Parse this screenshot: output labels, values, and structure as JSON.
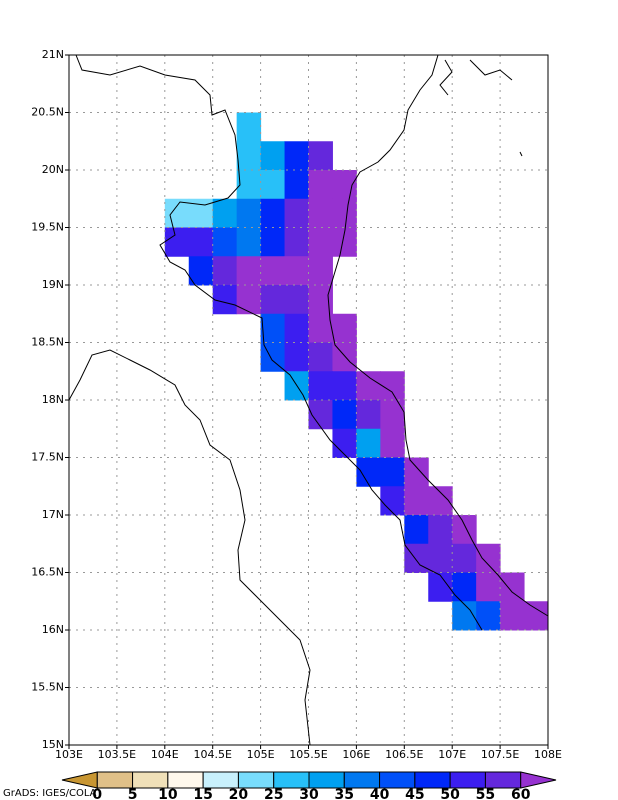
{
  "map": {
    "xlim": [
      103,
      108
    ],
    "ylim": [
      15,
      21
    ],
    "xticks": [
      {
        "value": 103,
        "label": "103E"
      },
      {
        "value": 103.5,
        "label": "103.5E"
      },
      {
        "value": 104,
        "label": "104E"
      },
      {
        "value": 104.5,
        "label": "104.5E"
      },
      {
        "value": 105,
        "label": "105E"
      },
      {
        "value": 105.5,
        "label": "105.5E"
      },
      {
        "value": 106,
        "label": "106E"
      },
      {
        "value": 106.5,
        "label": "106.5E"
      },
      {
        "value": 107,
        "label": "107E"
      },
      {
        "value": 107.5,
        "label": "107.5E"
      },
      {
        "value": 108,
        "label": "108E"
      }
    ],
    "yticks": [
      {
        "value": 15,
        "label": "15N"
      },
      {
        "value": 15.5,
        "label": "15.5N"
      },
      {
        "value": 16,
        "label": "16N"
      },
      {
        "value": 16.5,
        "label": "16.5N"
      },
      {
        "value": 17,
        "label": "17N"
      },
      {
        "value": 17.5,
        "label": "17.5N"
      },
      {
        "value": 18,
        "label": "18N"
      },
      {
        "value": 18.5,
        "label": "18.5N"
      },
      {
        "value": 19,
        "label": "19N"
      },
      {
        "value": 19.5,
        "label": "19.5N"
      },
      {
        "value": 20,
        "label": "20N"
      },
      {
        "value": 20.5,
        "label": "20.5N"
      },
      {
        "value": 21,
        "label": "21N"
      }
    ],
    "grid": true,
    "cell_size": 0.25,
    "cells": [
      {
        "lat": 20.375,
        "lon": [
          104.875
        ],
        "values": [
          27
        ]
      },
      {
        "lat": 20.125,
        "lon": [
          104.875,
          105.125,
          105.375,
          105.625
        ],
        "values": [
          27,
          32,
          47,
          57
        ]
      },
      {
        "lat": 19.875,
        "lon": [
          104.875,
          105.125,
          105.375,
          105.625,
          105.875
        ],
        "values": [
          27,
          27,
          47,
          62,
          62
        ]
      },
      {
        "lat": 19.625,
        "lon": [
          104.125,
          104.375,
          104.625,
          104.875,
          105.125,
          105.375,
          105.625,
          105.875
        ],
        "values": [
          22,
          22,
          32,
          37,
          47,
          57,
          62,
          62
        ]
      },
      {
        "lat": 19.375,
        "lon": [
          104.125,
          104.375,
          104.625,
          104.875,
          105.125,
          105.375,
          105.625,
          105.875
        ],
        "values": [
          52,
          52,
          42,
          37,
          47,
          57,
          62,
          62
        ]
      },
      {
        "lat": 19.125,
        "lon": [
          104.375,
          104.625,
          104.875,
          105.125,
          105.375,
          105.625
        ],
        "values": [
          47,
          57,
          62,
          62,
          62,
          62
        ]
      },
      {
        "lat": 18.875,
        "lon": [
          104.625,
          104.875,
          105.125,
          105.375,
          105.625
        ],
        "values": [
          52,
          62,
          57,
          57,
          62
        ]
      },
      {
        "lat": 18.625,
        "lon": [
          105.125,
          105.375,
          105.625,
          105.875
        ],
        "values": [
          42,
          52,
          62,
          62
        ]
      },
      {
        "lat": 18.375,
        "lon": [
          105.125,
          105.375,
          105.625,
          105.875
        ],
        "values": [
          42,
          52,
          57,
          62
        ]
      },
      {
        "lat": 18.125,
        "lon": [
          105.375,
          105.625,
          105.875,
          106.125,
          106.375
        ],
        "values": [
          32,
          52,
          52,
          62,
          62
        ]
      },
      {
        "lat": 17.875,
        "lon": [
          105.625,
          105.875,
          106.125,
          106.375
        ],
        "values": [
          57,
          47,
          57,
          62
        ]
      },
      {
        "lat": 17.625,
        "lon": [
          105.875,
          106.125,
          106.375
        ],
        "values": [
          52,
          32,
          62
        ]
      },
      {
        "lat": 17.375,
        "lon": [
          106.125,
          106.375,
          106.625
        ],
        "values": [
          47,
          47,
          62
        ]
      },
      {
        "lat": 17.125,
        "lon": [
          106.375,
          106.625,
          106.875
        ],
        "values": [
          52,
          62,
          62
        ]
      },
      {
        "lat": 16.875,
        "lon": [
          106.625,
          106.875,
          107.125
        ],
        "values": [
          47,
          57,
          62
        ]
      },
      {
        "lat": 16.625,
        "lon": [
          106.625,
          106.875,
          107.125,
          107.375
        ],
        "values": [
          57,
          57,
          57,
          62
        ]
      },
      {
        "lat": 16.375,
        "lon": [
          106.875,
          107.125,
          107.375,
          107.625
        ],
        "values": [
          52,
          47,
          62,
          62
        ]
      },
      {
        "lat": 16.125,
        "lon": [
          107.125,
          107.375,
          107.625,
          107.875
        ],
        "values": [
          37,
          42,
          62,
          62
        ]
      }
    ]
  },
  "colorbar": {
    "levels": [
      0,
      5,
      10,
      15,
      20,
      25,
      30,
      35,
      40,
      45,
      50,
      55,
      60
    ],
    "colors": [
      "#c89632",
      "#e0c088",
      "#f0e0b8",
      "#fff8ec",
      "#c8f0fc",
      "#78dcfc",
      "#28c0f8",
      "#00a0f0",
      "#0078f0",
      "#0050f8",
      "#0028f8",
      "#3c1ef0",
      "#6428dc",
      "#9632d0"
    ]
  },
  "footer": "GrADS: IGES/COLA"
}
